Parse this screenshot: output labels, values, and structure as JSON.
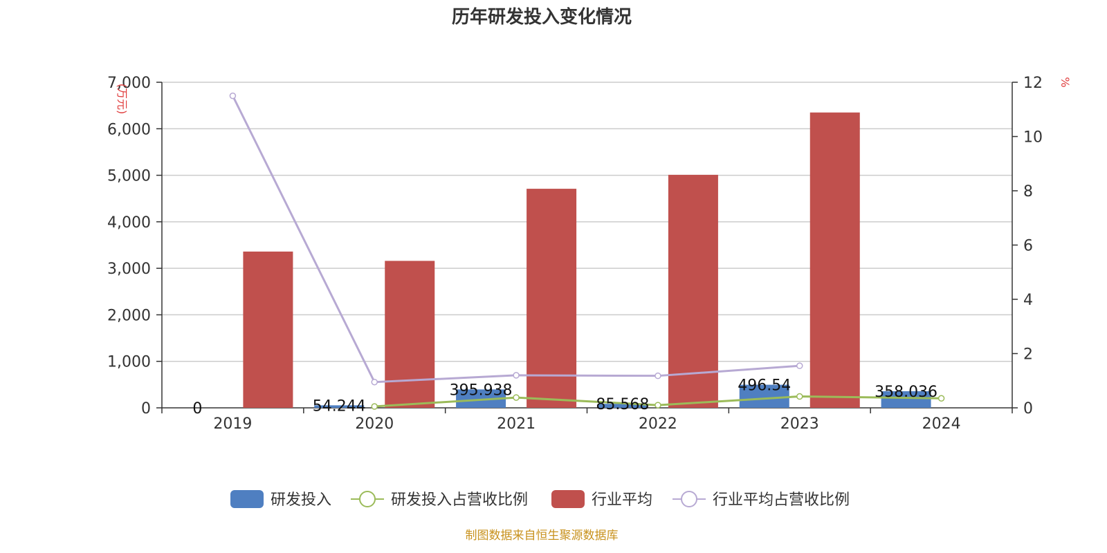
{
  "chart_data": {
    "type": "bar",
    "title": "历年研发投入变化情况",
    "categories": [
      "2019",
      "2020",
      "2021",
      "2022",
      "2023",
      "2024"
    ],
    "y_left": {
      "unit": "(万元)",
      "ylim": [
        0,
        7000
      ],
      "ticks": [
        0,
        1000,
        2000,
        3000,
        4000,
        5000,
        6000,
        7000
      ],
      "tick_labels": [
        "0",
        "1,000",
        "2,000",
        "3,000",
        "4,000",
        "5,000",
        "6,000",
        "7,000"
      ]
    },
    "y_right": {
      "unit": "%",
      "ylim": [
        0,
        12
      ],
      "ticks": [
        0,
        2,
        4,
        6,
        8,
        10,
        12
      ],
      "tick_labels": [
        "0",
        "2",
        "4",
        "6",
        "8",
        "10",
        "12"
      ]
    },
    "series": [
      {
        "name": "研发投入",
        "type": "bar",
        "axis": "left",
        "color": "#4f7fc1",
        "values": [
          0,
          54.244,
          395.938,
          85.568,
          496.54,
          358.036
        ],
        "labels": [
          "0",
          "54.244",
          "395.938",
          "85.568",
          "496.54",
          "358.036"
        ]
      },
      {
        "name": "研发投入占营收比例",
        "type": "line",
        "axis": "right",
        "color": "#9bbb59",
        "values": [
          null,
          0.05,
          0.38,
          0.1,
          0.42,
          0.35
        ]
      },
      {
        "name": "行业平均",
        "type": "bar",
        "axis": "left",
        "color": "#c0504d",
        "values": [
          3360,
          3160,
          4710,
          5010,
          6350,
          null
        ]
      },
      {
        "name": "行业平均占营收比例",
        "type": "line",
        "axis": "right",
        "color": "#b7a9d3",
        "values": [
          11.5,
          0.95,
          1.2,
          1.18,
          1.55,
          null
        ]
      }
    ],
    "grid": true,
    "legend_position": "bottom",
    "source": "制图数据来自恒生聚源数据库"
  }
}
